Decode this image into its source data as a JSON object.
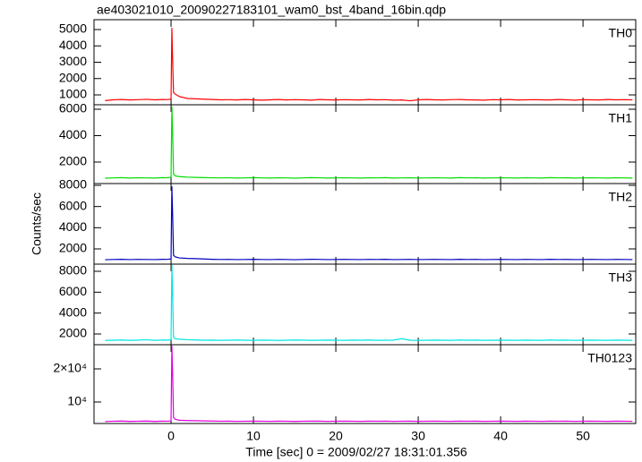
{
  "chart_data": [
    {
      "type": "line",
      "title": "ae403021010_20090227183101_wam0_bst_4band_16bin.qdp",
      "x": [
        -8,
        -7,
        -6,
        -5,
        -4,
        -3,
        -2,
        -1,
        -0.5,
        0,
        0.1,
        0.2,
        0.3,
        0.5,
        1,
        2,
        3,
        4,
        5,
        6,
        7,
        8,
        9,
        10,
        11,
        12,
        13,
        14,
        15,
        16,
        17,
        18,
        19,
        20,
        21,
        22,
        23,
        24,
        25,
        26,
        27,
        28,
        29,
        30,
        31,
        32,
        33,
        34,
        35,
        36,
        37,
        38,
        39,
        40,
        41,
        42,
        43,
        44,
        45,
        46,
        47,
        48,
        49,
        50,
        51,
        52,
        53,
        54,
        55,
        56
      ],
      "series": [
        {
          "name": "TH0",
          "color": "#ff0000",
          "values": [
            650,
            700,
            720,
            690,
            710,
            730,
            700,
            720,
            710,
            750,
            5100,
            3000,
            1150,
            1050,
            900,
            780,
            760,
            740,
            720,
            700,
            710,
            690,
            720,
            700,
            680,
            700,
            720,
            690,
            710,
            700,
            680,
            720,
            700,
            690,
            710,
            700,
            690,
            720,
            700,
            710,
            680,
            690,
            640,
            700,
            720,
            700,
            690,
            710,
            720,
            700,
            690,
            680,
            710,
            700,
            720,
            690,
            700,
            710,
            700,
            690,
            720,
            700,
            680,
            710,
            700,
            690,
            720,
            700,
            710,
            700
          ]
        }
      ],
      "xlim": [
        -9.35,
        56.4
      ],
      "xticks": [
        0,
        10,
        20,
        30,
        40,
        50
      ],
      "ylim": [
        397,
        5603
      ],
      "yticks": [
        1000,
        2000,
        3000,
        4000,
        5000
      ]
    },
    {
      "type": "line",
      "x": [
        -8,
        -7,
        -6,
        -5,
        -4,
        -3,
        -2,
        -1,
        -0.5,
        0,
        0.1,
        0.2,
        0.3,
        0.5,
        1,
        2,
        3,
        4,
        5,
        6,
        7,
        8,
        9,
        10,
        11,
        12,
        13,
        14,
        15,
        16,
        17,
        18,
        19,
        20,
        21,
        22,
        23,
        24,
        25,
        26,
        27,
        28,
        29,
        30,
        31,
        32,
        33,
        34,
        35,
        36,
        37,
        38,
        39,
        40,
        41,
        42,
        43,
        44,
        45,
        46,
        47,
        48,
        49,
        50,
        51,
        52,
        53,
        54,
        55,
        56
      ],
      "series": [
        {
          "name": "TH1",
          "color": "#00dd00",
          "values": [
            780,
            800,
            820,
            790,
            810,
            800,
            790,
            820,
            810,
            850,
            6200,
            4000,
            1100,
            950,
            900,
            860,
            840,
            820,
            810,
            800,
            810,
            790,
            800,
            820,
            800,
            790,
            810,
            800,
            780,
            800,
            820,
            810,
            790,
            800,
            810,
            800,
            790,
            810,
            800,
            820,
            790,
            800,
            810,
            790,
            800,
            810,
            800,
            790,
            820,
            800,
            810,
            790,
            800,
            810,
            800,
            790,
            810,
            800,
            790,
            820,
            800,
            810,
            790,
            800,
            810,
            800,
            790,
            810,
            800,
            790
          ]
        }
      ],
      "xlim": [
        -9.35,
        56.4
      ],
      "xticks": [
        0,
        10,
        20,
        30,
        40,
        50
      ],
      "ylim": [
        373,
        6339
      ],
      "yticks": [
        2000,
        4000,
        6000
      ]
    },
    {
      "type": "line",
      "y_label": "Counts/sec",
      "x": [
        -8,
        -7,
        -6,
        -5,
        -4,
        -3,
        -2,
        -1,
        -0.5,
        0,
        0.1,
        0.2,
        0.3,
        0.5,
        1,
        2,
        3,
        4,
        5,
        6,
        7,
        8,
        9,
        10,
        11,
        12,
        13,
        14,
        15,
        16,
        17,
        18,
        19,
        20,
        21,
        22,
        23,
        24,
        25,
        26,
        27,
        28,
        29,
        30,
        31,
        32,
        33,
        34,
        35,
        36,
        37,
        38,
        39,
        40,
        41,
        42,
        43,
        44,
        45,
        46,
        47,
        48,
        49,
        50,
        51,
        52,
        53,
        54,
        55,
        56
      ],
      "series": [
        {
          "name": "TH2",
          "color": "#0000c0",
          "values": [
            980,
            1000,
            1020,
            990,
            1010,
            1000,
            990,
            1020,
            1010,
            1050,
            7900,
            5000,
            1400,
            1250,
            1150,
            1100,
            1080,
            1050,
            1020,
            1000,
            1010,
            990,
            1000,
            1020,
            1000,
            990,
            1010,
            1000,
            980,
            1000,
            1020,
            1010,
            990,
            1000,
            1010,
            1000,
            990,
            1010,
            1000,
            1020,
            990,
            1000,
            1010,
            990,
            1000,
            1010,
            1000,
            990,
            1020,
            1000,
            1010,
            990,
            1000,
            1010,
            1000,
            990,
            1010,
            1000,
            990,
            1020,
            1000,
            1010,
            990,
            1000,
            1010,
            1000,
            990,
            1010,
            1000,
            990
          ]
        }
      ],
      "xlim": [
        -9.35,
        56.4
      ],
      "xticks": [
        0,
        10,
        20,
        30,
        40,
        50
      ],
      "ylim": [
        563,
        8169
      ],
      "yticks": [
        2000,
        4000,
        6000,
        8000
      ]
    },
    {
      "type": "line",
      "x": [
        -8,
        -7,
        -6,
        -5,
        -4,
        -3,
        -2,
        -1,
        -0.5,
        0,
        0.1,
        0.2,
        0.3,
        0.5,
        1,
        2,
        3,
        4,
        5,
        6,
        7,
        8,
        9,
        10,
        11,
        12,
        13,
        14,
        15,
        16,
        17,
        18,
        19,
        20,
        21,
        22,
        23,
        24,
        25,
        26,
        27,
        28,
        29,
        30,
        31,
        32,
        33,
        34,
        35,
        36,
        37,
        38,
        39,
        40,
        41,
        42,
        43,
        44,
        45,
        46,
        47,
        48,
        49,
        50,
        51,
        52,
        53,
        54,
        55,
        56
      ],
      "series": [
        {
          "name": "TH3",
          "color": "#00e5e5",
          "values": [
            1380,
            1400,
            1420,
            1390,
            1410,
            1450,
            1390,
            1420,
            1410,
            1450,
            8600,
            5500,
            1700,
            1550,
            1500,
            1450,
            1420,
            1400,
            1410,
            1390,
            1400,
            1420,
            1400,
            1390,
            1410,
            1400,
            1380,
            1400,
            1420,
            1410,
            1390,
            1400,
            1410,
            1400,
            1390,
            1410,
            1400,
            1420,
            1390,
            1400,
            1410,
            1550,
            1400,
            1390,
            1400,
            1410,
            1400,
            1390,
            1420,
            1400,
            1410,
            1390,
            1400,
            1410,
            1400,
            1390,
            1410,
            1400,
            1390,
            1420,
            1400,
            1410,
            1390,
            1400,
            1410,
            1400,
            1390,
            1410,
            1400,
            1390
          ]
        }
      ],
      "xlim": [
        -9.35,
        56.4
      ],
      "xticks": [
        0,
        10,
        20,
        30,
        40,
        50
      ],
      "ylim": [
        972,
        8686
      ],
      "yticks": [
        2000,
        4000,
        6000,
        8000
      ]
    },
    {
      "type": "line",
      "x_label": "Time [sec] 0 = 2009/02/27 18:31:01.356",
      "x": [
        -8,
        -7,
        -6,
        -5,
        -4,
        -3,
        -2,
        -1,
        -0.5,
        0,
        0.1,
        0.2,
        0.3,
        0.5,
        1,
        2,
        3,
        4,
        5,
        6,
        7,
        8,
        9,
        10,
        11,
        12,
        13,
        14,
        15,
        16,
        17,
        18,
        19,
        20,
        21,
        22,
        23,
        24,
        25,
        26,
        27,
        28,
        29,
        30,
        31,
        32,
        33,
        34,
        35,
        36,
        37,
        38,
        39,
        40,
        41,
        42,
        43,
        44,
        45,
        46,
        47,
        48,
        49,
        50,
        51,
        52,
        53,
        54,
        55,
        56
      ],
      "series": [
        {
          "name": "TH0123",
          "color": "#e000e0",
          "values": [
            4100,
            4200,
            4250,
            4150,
            4200,
            4250,
            4150,
            4220,
            4200,
            4300,
            27000,
            17500,
            5300,
            4800,
            4500,
            4400,
            4350,
            4300,
            4250,
            4200,
            4220,
            4180,
            4200,
            4240,
            4200,
            4180,
            4220,
            4200,
            4160,
            4200,
            4240,
            4220,
            4180,
            4200,
            4220,
            4200,
            4180,
            4220,
            4200,
            4240,
            4180,
            4200,
            4220,
            4180,
            4200,
            4220,
            4200,
            4180,
            4240,
            4200,
            4220,
            4180,
            4200,
            4220,
            4200,
            4180,
            4220,
            4200,
            4180,
            4240,
            4200,
            4220,
            4180,
            4200,
            4220,
            4200,
            4180,
            4220,
            4200,
            4180
          ]
        }
      ],
      "xlim": [
        -9.35,
        56.4
      ],
      "xticks": [
        0,
        10,
        20,
        30,
        40,
        50
      ],
      "ylim": [
        3514,
        27297
      ],
      "yticks": [
        {
          "value": 10000,
          "label": "10⁴"
        },
        {
          "value": 20000,
          "label": "2×10⁴"
        }
      ]
    }
  ]
}
